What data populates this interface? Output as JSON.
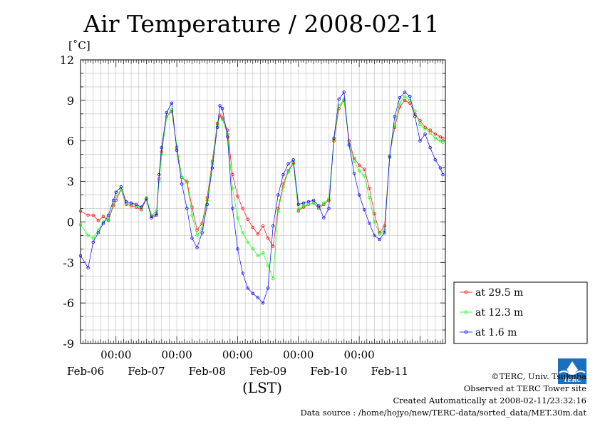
{
  "chart_data": {
    "type": "line",
    "title": "Air Temperature / 2008-02-11",
    "ylabel": "[˚C]",
    "xlabel": "(LST)",
    "ylim": [
      -9,
      12
    ],
    "yticks": [
      -9,
      -6,
      -3,
      0,
      3,
      6,
      9,
      12
    ],
    "xticks": [
      "00:00",
      "00:00",
      "00:00",
      "00:00",
      "00:00"
    ],
    "xdates": [
      "Feb-06",
      "Feb-07",
      "Feb-08",
      "Feb-09",
      "Feb-10",
      "Feb-11"
    ],
    "xrange_hours": [
      -14,
      130
    ],
    "grid": true,
    "legend_position": "bottom-right",
    "series": [
      {
        "name": "at 29.5 m",
        "color": "#ff0000",
        "x": [
          -14,
          -11,
          -9,
          -7,
          -5,
          -3,
          -1,
          0,
          2,
          4,
          6,
          8,
          10,
          12,
          14,
          16,
          17,
          18,
          20,
          22,
          24,
          26,
          28,
          30,
          32,
          34,
          36,
          38,
          40,
          41,
          42,
          44,
          46,
          48,
          50,
          52,
          54,
          56,
          58,
          60,
          62,
          64,
          66,
          68,
          70,
          72,
          74,
          76,
          78,
          80,
          82,
          84,
          86,
          88,
          90,
          92,
          94,
          96,
          98,
          100,
          102,
          104,
          106,
          108,
          110,
          112,
          114,
          116,
          118,
          120,
          122,
          124,
          126,
          128,
          129
        ],
        "values": [
          0.8,
          0.5,
          0.5,
          0.1,
          0.4,
          0.1,
          1.2,
          1.6,
          2.4,
          1.3,
          1.2,
          1.1,
          0.9,
          1.7,
          0.4,
          0.6,
          3.2,
          5.2,
          7.8,
          8.2,
          5.5,
          3.3,
          3.0,
          1.1,
          -0.6,
          -0.1,
          1.8,
          4.5,
          7.3,
          7.9,
          7.7,
          6.8,
          3.5,
          1.9,
          1.0,
          0.2,
          -0.4,
          -0.9,
          -0.3,
          -1.2,
          -1.8,
          1.0,
          2.8,
          3.8,
          4.4,
          0.8,
          1.1,
          1.3,
          1.4,
          1.0,
          1.3,
          1.6,
          6.0,
          8.4,
          9.0,
          6.0,
          4.7,
          4.2,
          3.9,
          2.5,
          0.6,
          -0.8,
          -0.3,
          4.9,
          7.0,
          8.5,
          9.0,
          8.8,
          8.0,
          7.5,
          7.0,
          6.8,
          6.5,
          6.3,
          6.2
        ]
      },
      {
        "name": "at 12.3 m",
        "color": "#00ff00",
        "x": [
          -14,
          -11,
          -9,
          -7,
          -5,
          -3,
          -1,
          0,
          2,
          4,
          6,
          8,
          10,
          12,
          14,
          16,
          17,
          18,
          20,
          22,
          24,
          26,
          28,
          30,
          32,
          34,
          36,
          38,
          40,
          41,
          42,
          44,
          46,
          48,
          50,
          52,
          54,
          56,
          58,
          60,
          62,
          64,
          66,
          68,
          70,
          72,
          74,
          76,
          78,
          80,
          82,
          84,
          86,
          88,
          90,
          92,
          94,
          96,
          98,
          100,
          102,
          104,
          106,
          108,
          110,
          112,
          114,
          116,
          118,
          120,
          122,
          124,
          126,
          128,
          129
        ],
        "values": [
          -0.2,
          -1.0,
          -1.2,
          -0.6,
          0.0,
          0.2,
          1.3,
          1.9,
          2.4,
          1.4,
          1.3,
          1.2,
          1.0,
          1.8,
          0.5,
          0.8,
          3.0,
          5.0,
          7.8,
          8.3,
          5.6,
          3.3,
          2.9,
          0.5,
          -1.0,
          -0.5,
          1.6,
          4.3,
          7.2,
          7.8,
          7.6,
          6.5,
          2.5,
          0.3,
          -0.8,
          -1.5,
          -2.0,
          -2.5,
          -2.3,
          -3.2,
          -4.2,
          0.8,
          2.6,
          3.7,
          4.3,
          0.9,
          1.2,
          1.3,
          1.4,
          1.1,
          1.4,
          1.7,
          6.1,
          8.6,
          9.1,
          5.8,
          4.5,
          3.8,
          3.4,
          1.8,
          0.0,
          -0.9,
          -0.6,
          4.9,
          7.2,
          8.8,
          9.3,
          9.0,
          8.2,
          7.2,
          6.9,
          6.6,
          6.2,
          6.0,
          5.9
        ]
      },
      {
        "name": "at 1.6 m",
        "color": "#0000ff",
        "x": [
          -14,
          -11,
          -9,
          -7,
          -5,
          -3,
          -1,
          0,
          2,
          4,
          6,
          8,
          10,
          12,
          14,
          16,
          17,
          18,
          20,
          22,
          24,
          26,
          28,
          30,
          32,
          34,
          36,
          38,
          40,
          41,
          42,
          44,
          46,
          48,
          50,
          52,
          54,
          56,
          58,
          60,
          62,
          64,
          66,
          68,
          70,
          72,
          74,
          76,
          78,
          80,
          82,
          84,
          86,
          88,
          90,
          92,
          94,
          96,
          98,
          100,
          102,
          104,
          106,
          108,
          110,
          112,
          114,
          116,
          118,
          120,
          122,
          124,
          126,
          128,
          129
        ],
        "values": [
          -2.5,
          -3.4,
          -1.5,
          -0.8,
          -0.1,
          0.5,
          1.6,
          2.2,
          2.6,
          1.5,
          1.4,
          1.3,
          1.1,
          1.7,
          0.3,
          0.5,
          3.5,
          5.5,
          8.1,
          8.8,
          5.3,
          2.8,
          1.0,
          -1.2,
          -1.9,
          -0.8,
          1.3,
          4.0,
          7.0,
          8.6,
          8.4,
          6.3,
          1.0,
          -2.0,
          -3.8,
          -4.9,
          -5.3,
          -5.6,
          -6.0,
          -4.9,
          -0.3,
          2.0,
          3.5,
          4.3,
          4.6,
          1.3,
          1.4,
          1.5,
          1.6,
          1.2,
          0.3,
          1.0,
          6.2,
          9.1,
          9.6,
          5.7,
          3.6,
          2.0,
          0.9,
          -0.1,
          -1.0,
          -1.3,
          -0.8,
          4.8,
          7.8,
          9.2,
          9.6,
          9.3,
          7.8,
          6.0,
          6.5,
          5.5,
          4.6,
          4.0,
          3.5
        ]
      }
    ]
  },
  "footer": {
    "copyright": "©TERC, Univ. Tsukuba",
    "site": "Observed at TERC Tower site",
    "created": "Created Automatically at 2008-02-11/23:32:16",
    "source": "Data source : /home/hojyo/new/TERC-data/sorted_data/MET.30m.dat"
  },
  "logo": {
    "text": "TERC",
    "color": "#1a6fc0"
  }
}
